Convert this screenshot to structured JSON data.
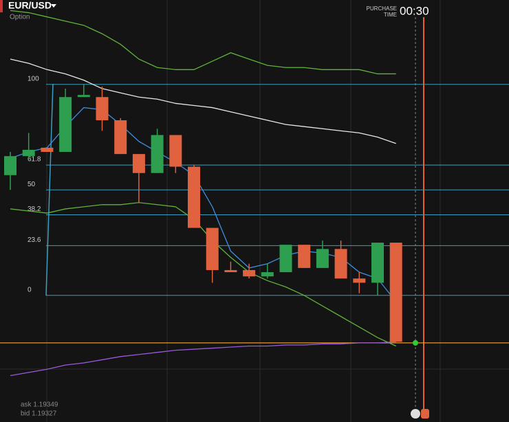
{
  "header": {
    "pair": "EUR/USD",
    "subtitle": "Option",
    "purchase_label": [
      "PURCHASE",
      "TIME"
    ],
    "timer": "00:30"
  },
  "quotes": {
    "ask": "ask 1.19349",
    "bid": "bid 1.19327"
  },
  "chart_data": {
    "type": "candlestick",
    "categories": [
      null,
      null,
      null,
      null,
      null,
      null,
      null,
      null,
      null,
      null,
      null,
      null,
      null,
      null,
      null,
      null,
      null,
      null,
      null,
      null,
      null,
      null
    ],
    "open": [
      57,
      66,
      70,
      68,
      94,
      94,
      83,
      67,
      58,
      76,
      61,
      32,
      12,
      12,
      9,
      11,
      24,
      13,
      22,
      8,
      6,
      25
    ],
    "high": [
      68,
      77,
      70,
      98,
      100,
      99,
      84,
      67,
      79,
      76,
      62,
      32,
      16,
      15,
      15,
      24,
      24,
      26,
      26,
      11,
      25,
      25
    ],
    "low": [
      50,
      64,
      68,
      68,
      94,
      78,
      67,
      44,
      58,
      58,
      32,
      6,
      11,
      8,
      8,
      11,
      13,
      13,
      8,
      1,
      0,
      -22
    ],
    "close": [
      66,
      69,
      68,
      94,
      95,
      83,
      67,
      58,
      76,
      61,
      32,
      12,
      11,
      9,
      11,
      24,
      13,
      22,
      8,
      6,
      25,
      -22
    ],
    "up_color": "#2e9e4f",
    "down_color": "#e0623e",
    "ylim": [
      -60,
      140
    ],
    "yticks": [
      100,
      61.8,
      50,
      38.2,
      23.6,
      0
    ],
    "lines": [
      {
        "color": "#5fb33a",
        "values": [
          135,
          134,
          132,
          130,
          128,
          124,
          119,
          112,
          108,
          107,
          107,
          111,
          115,
          112,
          109,
          108,
          108,
          107,
          107,
          107,
          105,
          105
        ]
      },
      {
        "color": "#e8e8e8",
        "values": [
          112,
          110,
          107,
          105,
          102,
          98,
          96,
          94,
          93,
          91,
          90,
          89,
          87,
          85,
          83,
          81,
          80,
          79,
          78,
          77,
          75,
          72
        ]
      },
      {
        "color": "#3f8fe0",
        "values": [
          65,
          68,
          70,
          80,
          89,
          88,
          81,
          73,
          68,
          63,
          57,
          42,
          21,
          13,
          15,
          19,
          21,
          20,
          18,
          11,
          8,
          -3
        ]
      },
      {
        "color": "#5fb33a",
        "values": [
          41,
          40,
          39,
          41,
          42,
          43,
          43,
          44,
          43,
          42,
          36,
          26,
          18,
          11,
          7,
          4,
          0,
          -5,
          -10,
          -15,
          -20,
          -24
        ]
      },
      {
        "color": "#9b59d9",
        "values": [
          -38,
          -36.5,
          -35,
          -33,
          -32,
          -30.5,
          -29,
          -28,
          -27,
          -26,
          -25.5,
          -25,
          -24.5,
          -24,
          -24,
          -23.5,
          -23.5,
          -23,
          -23,
          -22.5,
          -22.5,
          -22
        ]
      }
    ],
    "current_price": {
      "value": -22.5,
      "color": "#e8962e"
    }
  }
}
